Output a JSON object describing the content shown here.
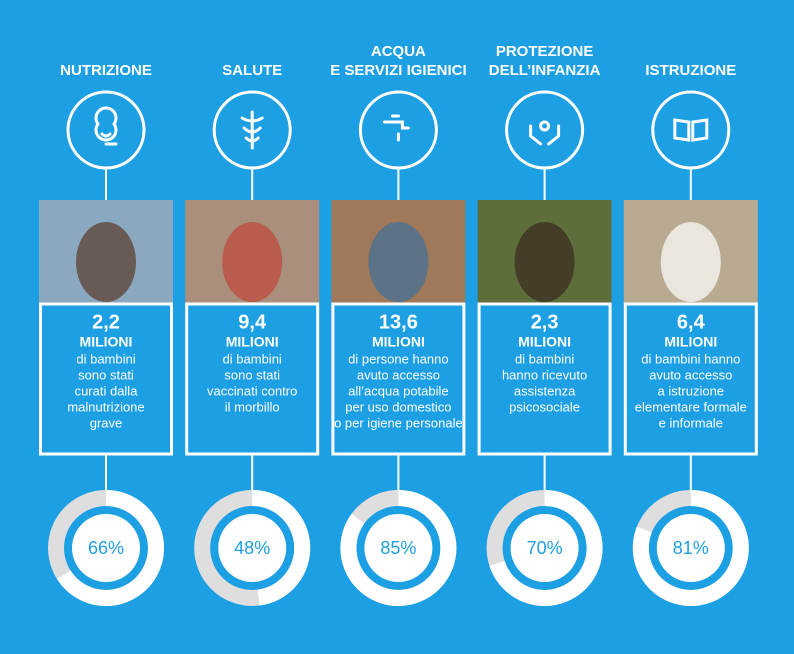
{
  "columns": [
    {
      "title": [
        "NUTRIZIONE"
      ],
      "number": "2,2",
      "unit": "MILIONI",
      "lines": [
        "di bambini",
        "sono stati",
        "curati dalla",
        "malnutrizione",
        "grave"
      ],
      "percent": {
        "value": 66,
        "label": "66%"
      }
    },
    {
      "title": [
        "SALUTE"
      ],
      "number": "9,4",
      "unit": "MILIONI",
      "lines": [
        "di bambini",
        "sono stati",
        "vaccinati contro",
        "il morbillo"
      ],
      "percent": {
        "value": 48,
        "label": "48%"
      }
    },
    {
      "title": [
        "ACQUA",
        "E SERVIZI IGIENICI"
      ],
      "number": "13,6",
      "unit": "MILIONI",
      "lines": [
        "di persone hanno",
        "avuto accesso",
        "all’acqua potabile",
        "per uso domestico",
        "o per igiene personale"
      ],
      "percent": {
        "value": 85,
        "label": "85%"
      }
    },
    {
      "title": [
        "PROTEZIONE",
        "DELL’INFANZIA"
      ],
      "number": "2,3",
      "unit": "MILIONI",
      "lines": [
        "di bambini",
        "hanno ricevuto",
        "assistenza",
        "psicosociale"
      ],
      "percent": {
        "value": 70,
        "label": "70%"
      }
    },
    {
      "title": [
        "ISTRUZIONE"
      ],
      "number": "6,4",
      "unit": "MILIONI",
      "lines": [
        "di bambini hanno",
        "avuto accesso",
        "a istruzione",
        "elementare formale",
        "e informale"
      ],
      "percent": {
        "value": 81,
        "label": "81%"
      }
    }
  ]
}
